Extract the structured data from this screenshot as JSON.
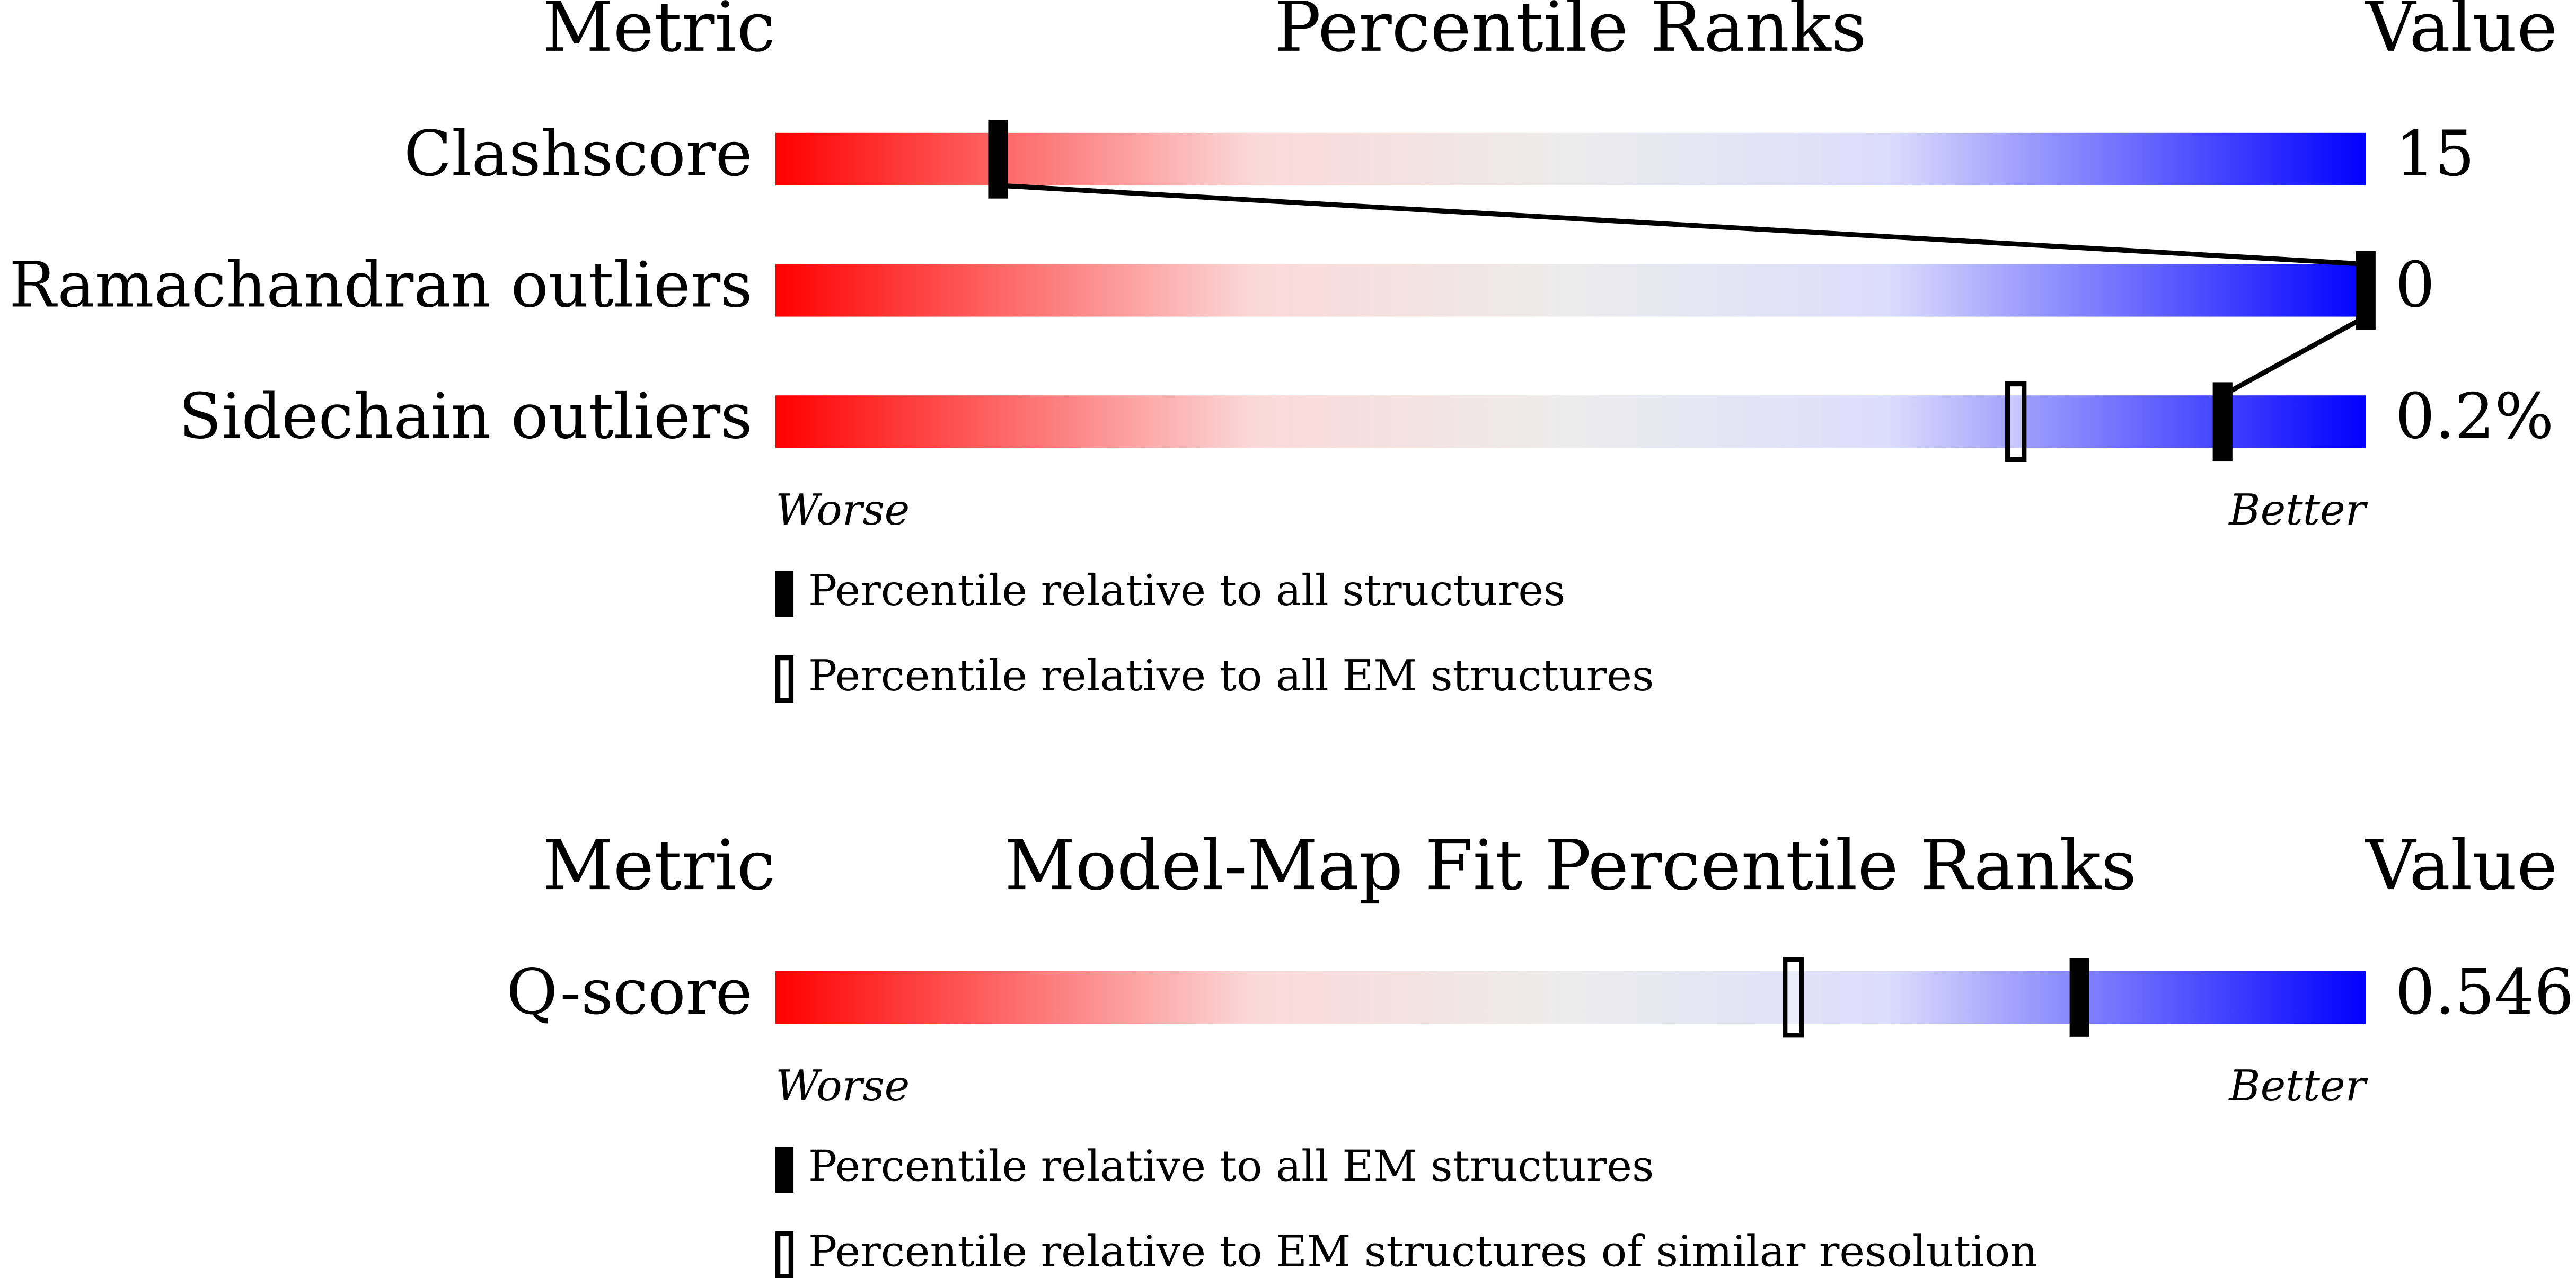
{
  "chart_data": [
    {
      "type": "percentile-slider",
      "headers": {
        "metric": "Metric",
        "title": "Percentile Ranks",
        "value": "Value"
      },
      "xlim": [
        0,
        100
      ],
      "metrics": [
        {
          "name": "Clashscore",
          "value": 15,
          "percentile": 14
        },
        {
          "name": "Ramachandran outliers",
          "value": 0,
          "percentile": 100
        },
        {
          "name": "Sidechain outliers",
          "value": 0.2,
          "value_label": "0.2%",
          "percentile": 91,
          "percentile_secondary": 78
        }
      ],
      "worse": "Worse",
      "better": "Better",
      "legend": [
        {
          "label": "Percentile relative to all structures",
          "marker": "filled"
        },
        {
          "label": "Percentile relative to all EM structures",
          "marker": "hollow"
        }
      ]
    },
    {
      "type": "percentile-slider",
      "headers": {
        "metric": "Metric",
        "title": "Model-Map Fit Percentile Ranks",
        "value": "Value"
      },
      "xlim": [
        0,
        100
      ],
      "metrics": [
        {
          "name": "Q-score",
          "value": 0.546,
          "percentile": 82,
          "percentile_secondary": 64
        }
      ],
      "worse": "Worse",
      "better": "Better",
      "legend": [
        {
          "label": "Percentile relative to all EM structures",
          "marker": "filled"
        },
        {
          "label": "Percentile relative to EM structures of similar resolution",
          "marker": "hollow"
        }
      ]
    }
  ]
}
